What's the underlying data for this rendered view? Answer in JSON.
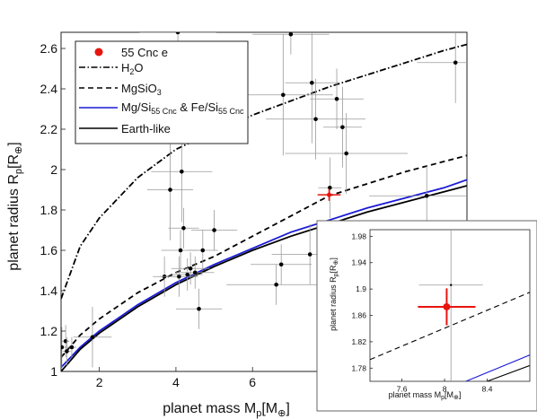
{
  "chart_data": [
    {
      "type": "scatter",
      "title": "",
      "xlabel_main": "planet mass M",
      "xlabel_sub": "p",
      "xlabel_unit": "[M",
      "xlabel_unit_sub": "⊕",
      "xlabel_close": "]",
      "ylabel_main": "planet radius R",
      "ylabel_sub": "p",
      "ylabel_unit": "[R",
      "ylabel_unit_sub": "⊕",
      "ylabel_close": "]",
      "xlim": [
        1,
        11.6
      ],
      "ylim": [
        1,
        2.68
      ],
      "xticks": [
        2,
        4,
        6,
        8
      ],
      "xtick_labels": [
        "2",
        "4",
        "6",
        "8"
      ],
      "yticks": [
        1,
        1.2,
        1.4,
        1.6,
        1.8,
        2,
        2.2,
        2.4,
        2.6
      ],
      "ytick_labels": [
        "1",
        "1.2",
        "1.4",
        "1.6",
        "1.8",
        "2",
        "2.2",
        "2.4",
        "2.6"
      ],
      "grid": false,
      "legend_position": "top-left",
      "legend": [
        {
          "label": "55 Cnc e",
          "style": "marker",
          "color": "#e8140e"
        },
        {
          "label": "H",
          "sub": "2",
          "tail": "O",
          "style": "dashdot",
          "color": "#000000"
        },
        {
          "label": "MgSiO",
          "sub": "3",
          "tail": "",
          "style": "dashed",
          "color": "#000000"
        },
        {
          "label": "Mg/Si",
          "sub": "55 Cnc",
          "tail": " & Fe/Si",
          "sub2": "55 Cnc",
          "style": "solid",
          "color": "#1a1ad6"
        },
        {
          "label": "Earth-like",
          "style": "solid",
          "color": "#000000"
        }
      ],
      "series": [
        {
          "name": "H2O",
          "style": "dashdot",
          "color": "#000000",
          "x": [
            1,
            1.5,
            2,
            3,
            4,
            5,
            6,
            7,
            8,
            9,
            10,
            11,
            11.6
          ],
          "y": [
            1.36,
            1.62,
            1.76,
            1.96,
            2.1,
            2.19,
            2.27,
            2.34,
            2.41,
            2.47,
            2.53,
            2.59,
            2.62
          ]
        },
        {
          "name": "MgSiO3",
          "style": "dashed",
          "color": "#000000",
          "x": [
            1,
            1.5,
            2,
            3,
            4,
            5,
            6,
            7,
            8,
            9,
            10,
            11,
            11.6
          ],
          "y": [
            1.07,
            1.18,
            1.26,
            1.39,
            1.49,
            1.57,
            1.67,
            1.77,
            1.87,
            1.93,
            1.99,
            2.04,
            2.07
          ]
        },
        {
          "name": "Mg/Si 55 Cnc & Fe/Si 55 Cnc",
          "style": "solid",
          "color": "#1a1ad6",
          "x": [
            1,
            1.5,
            2,
            3,
            4,
            5,
            6,
            7,
            8,
            9,
            10,
            11,
            11.6
          ],
          "y": [
            1.02,
            1.12,
            1.2,
            1.33,
            1.44,
            1.53,
            1.61,
            1.69,
            1.75,
            1.81,
            1.86,
            1.91,
            1.95
          ]
        },
        {
          "name": "Earth-like",
          "style": "solid",
          "color": "#000000",
          "x": [
            1,
            1.5,
            2,
            3,
            4,
            5,
            6,
            7,
            8,
            9,
            10,
            11,
            11.6
          ],
          "y": [
            1,
            1.11,
            1.19,
            1.32,
            1.43,
            1.52,
            1.6,
            1.67,
            1.73,
            1.79,
            1.84,
            1.89,
            1.92
          ]
        }
      ],
      "points": [
        {
          "x": 1.02,
          "y": 1.12,
          "xerr": 0.12,
          "yerr": 0.1
        },
        {
          "x": 1.12,
          "y": 1.15,
          "xerr": 0.1,
          "yerr": 0.08
        },
        {
          "x": 1.15,
          "y": 1.1,
          "xerr": 0.1,
          "yerr": 0.07
        },
        {
          "x": 1.28,
          "y": 1.12,
          "xerr": 0.12,
          "yerr": 0.05
        },
        {
          "x": 1.82,
          "y": 1.17,
          "xerr": 0.5,
          "yerr": 0.15
        },
        {
          "x": 3.7,
          "y": 1.47,
          "xerr": 0.3,
          "yerr": 0.1
        },
        {
          "x": 3.85,
          "y": 1.9,
          "xerr": 0.6,
          "yerr": 0.25
        },
        {
          "x": 4.05,
          "y": 2.68,
          "xerr": 1.0,
          "yerr": 0.1
        },
        {
          "x": 4.08,
          "y": 1.47,
          "xerr": 0.5,
          "yerr": 0.1
        },
        {
          "x": 4.12,
          "y": 1.6,
          "xerr": 0.5,
          "yerr": 0.1
        },
        {
          "x": 4.15,
          "y": 1.99,
          "xerr": 0.8,
          "yerr": 0.25
        },
        {
          "x": 4.2,
          "y": 1.71,
          "xerr": 0.4,
          "yerr": 0.1
        },
        {
          "x": 4.3,
          "y": 1.48,
          "xerr": 0.4,
          "yerr": 0.08
        },
        {
          "x": 4.38,
          "y": 1.51,
          "xerr": 0.5,
          "yerr": 0.08
        },
        {
          "x": 4.5,
          "y": 1.49,
          "xerr": 0.5,
          "yerr": 0.08
        },
        {
          "x": 4.6,
          "y": 1.31,
          "xerr": 0.6,
          "yerr": 0.1
        },
        {
          "x": 4.7,
          "y": 1.6,
          "xerr": 0.4,
          "yerr": 0.1
        },
        {
          "x": 5.0,
          "y": 1.7,
          "xerr": 0.6,
          "yerr": 0.1
        },
        {
          "x": 6.62,
          "y": 1.43,
          "xerr": 1.3,
          "yerr": 0.1
        },
        {
          "x": 6.75,
          "y": 1.53,
          "xerr": 0.8,
          "yerr": 0.1
        },
        {
          "x": 6.8,
          "y": 2.37,
          "xerr": 1.3,
          "yerr": 0.3
        },
        {
          "x": 7.0,
          "y": 2.67,
          "xerr": 1.0,
          "yerr": 0.1
        },
        {
          "x": 7.5,
          "y": 1.58,
          "xerr": 1.0,
          "yerr": 0.15
        },
        {
          "x": 7.55,
          "y": 2.43,
          "xerr": 0.7,
          "yerr": 0.3
        },
        {
          "x": 7.65,
          "y": 2.25,
          "xerr": 1.3,
          "yerr": 0.2
        },
        {
          "x": 8.02,
          "y": 1.91,
          "xerr": 0.3,
          "yerr": 0.15
        },
        {
          "x": 8.2,
          "y": 2.35,
          "xerr": 0.7,
          "yerr": 0.15
        },
        {
          "x": 8.35,
          "y": 2.21,
          "xerr": 0.5,
          "yerr": 0.2
        },
        {
          "x": 8.45,
          "y": 2.08,
          "xerr": 1.6,
          "yerr": 0.2
        },
        {
          "x": 10.55,
          "y": 1.87,
          "xerr": 1.5,
          "yerr": 0.15
        },
        {
          "x": 11.3,
          "y": 2.53,
          "xerr": 1.0,
          "yerr": 0.2
        }
      ],
      "highlight": {
        "name": "55 Cnc e",
        "x": 8.0,
        "y": 1.875,
        "xerr": 0.3,
        "yerr": 0.03,
        "color": "#e8140e"
      }
    },
    {
      "type": "scatter",
      "title": "",
      "xlabel_main": "planet mass M",
      "xlabel_sub": "p",
      "xlabel_unit": "[M",
      "xlabel_unit_sub": "⊕",
      "xlabel_close": "]",
      "ylabel_main": "planet radius R",
      "ylabel_sub": "p",
      "ylabel_unit": "[R",
      "ylabel_unit_sub": "⊕",
      "ylabel_close": "]",
      "xlim": [
        7.3,
        8.8
      ],
      "ylim": [
        1.76,
        1.99
      ],
      "xticks": [
        7.6,
        8,
        8.4
      ],
      "xtick_labels": [
        "7.6",
        "8",
        "8.4"
      ],
      "yticks": [
        1.78,
        1.82,
        1.86,
        1.9,
        1.94,
        1.98
      ],
      "ytick_labels": [
        "1.78",
        "1.82",
        "1.86",
        "1.9",
        "1.94",
        "1.98"
      ],
      "series": [
        {
          "name": "MgSiO3",
          "style": "dashed",
          "color": "#000000",
          "x": [
            7.3,
            8.8
          ],
          "y": [
            1.793,
            1.895
          ]
        },
        {
          "name": "Mg/Si 55 Cnc & Fe/Si 55 Cnc",
          "style": "solid",
          "color": "#1a1ad6",
          "x": [
            8.2,
            8.8
          ],
          "y": [
            1.76,
            1.8
          ]
        },
        {
          "name": "Earth-like",
          "style": "solid",
          "color": "#000000",
          "x": [
            8.4,
            8.8
          ],
          "y": [
            1.76,
            1.784
          ]
        }
      ],
      "points": [
        {
          "x": 8.06,
          "y": 1.906,
          "xerr": 0.3,
          "yerr": 0.15
        }
      ],
      "highlight": {
        "name": "55 Cnc e",
        "x": 8.02,
        "y": 1.873,
        "xerr": 0.27,
        "yerr": 0.028,
        "color": "#e8140e"
      }
    }
  ]
}
